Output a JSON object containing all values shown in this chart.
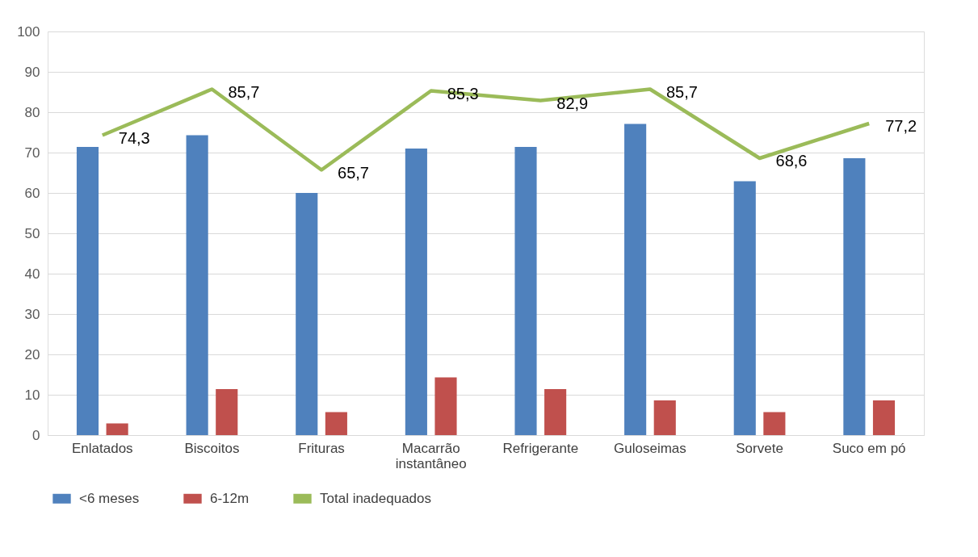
{
  "chart_data": {
    "type": "bar",
    "categories": [
      "Enlatados",
      "Biscoitos",
      "Frituras",
      "Macarrão instantâneo",
      "Refrigerante",
      "Guloseimas",
      "Sorvete",
      "Suco em pó"
    ],
    "series": [
      {
        "name": "<6 meses",
        "color": "#4f81bd",
        "values": [
          71.4,
          74.3,
          60.0,
          71.0,
          71.4,
          77.1,
          62.9,
          68.6
        ]
      },
      {
        "name": "6-12m",
        "color": "#c0504d",
        "values": [
          2.9,
          11.4,
          5.7,
          14.3,
          11.4,
          8.6,
          5.7,
          8.6
        ]
      },
      {
        "name": "Total inadequados",
        "type": "line",
        "color": "#9bbb59",
        "values": [
          74.3,
          85.7,
          65.7,
          85.3,
          82.9,
          85.7,
          68.6,
          77.2
        ],
        "value_labels": [
          "74,3",
          "85,7",
          "65,7",
          "85,3",
          "82,9",
          "85,7",
          "68,6",
          "77,2"
        ]
      }
    ],
    "ylim": [
      0,
      100
    ],
    "yticks": [
      0,
      10,
      20,
      30,
      40,
      50,
      60,
      70,
      80,
      90,
      100
    ],
    "grid": "y",
    "legend": "bottom",
    "marker": "none",
    "line_style": "solid"
  }
}
